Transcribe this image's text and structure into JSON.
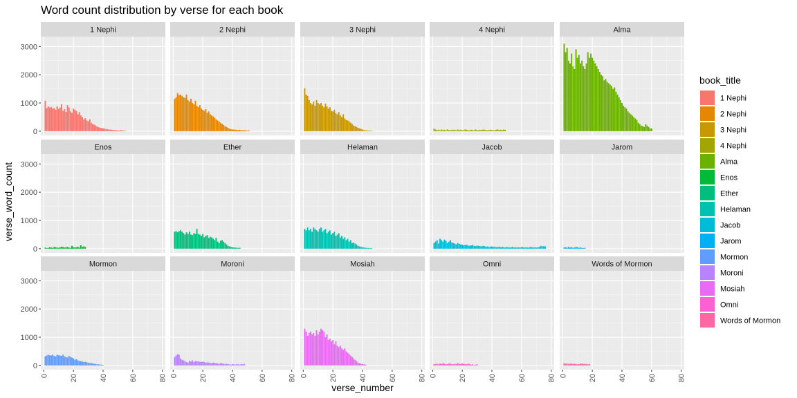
{
  "chart_data": {
    "type": "bar",
    "title": "Word count distribution by verse for each book",
    "xlabel": "verse_number",
    "ylabel": "verse_word_count",
    "xlim": [
      -2,
      82
    ],
    "ylim": [
      -150,
      3350
    ],
    "x_ticks": [
      0,
      20,
      40,
      60,
      80
    ],
    "y_ticks": [
      0,
      1000,
      2000,
      3000
    ],
    "grid": true,
    "facet_layout": {
      "rows": 3,
      "cols": 5
    },
    "legend": {
      "title": "book_title",
      "placement": "right"
    },
    "series": [
      {
        "name": "1 Nephi",
        "color": "#F8766D",
        "values": [
          1080,
          820,
          880,
          840,
          860,
          800,
          820,
          760,
          880,
          790,
          840,
          960,
          720,
          780,
          680,
          920,
          840,
          700,
          650,
          800,
          760,
          720,
          600,
          680,
          560,
          500,
          420,
          460,
          380,
          350,
          420,
          300,
          250,
          230,
          200,
          160,
          140,
          120,
          110,
          100,
          90,
          80,
          70,
          60,
          55,
          50,
          40,
          40,
          30,
          30,
          25,
          40,
          30,
          20,
          20
        ]
      },
      {
        "name": "2 Nephi",
        "color": "#E58700",
        "values": [
          1150,
          1200,
          1350,
          1280,
          1300,
          1250,
          1200,
          1180,
          1300,
          1100,
          1050,
          1150,
          1000,
          950,
          1080,
          900,
          850,
          920,
          800,
          760,
          720,
          780,
          650,
          700,
          600,
          560,
          520,
          480,
          420,
          380,
          340,
          300,
          260,
          220,
          180,
          150,
          120,
          90,
          70,
          60,
          60,
          50,
          50,
          40,
          50,
          40,
          30,
          40,
          30,
          20,
          30
        ]
      },
      {
        "name": "3 Nephi",
        "color": "#C99800",
        "values": [
          1520,
          1300,
          1250,
          1100,
          1000,
          950,
          1050,
          900,
          1100,
          1000,
          950,
          1000,
          900,
          850,
          980,
          880,
          800,
          850,
          720,
          700,
          760,
          640,
          600,
          680,
          560,
          500,
          600,
          450,
          400,
          380,
          350,
          300,
          250,
          200,
          180,
          150,
          120,
          100,
          80,
          60,
          40,
          30,
          30,
          20,
          20,
          20
        ]
      },
      {
        "name": "4 Nephi",
        "color": "#A3A500",
        "values": [
          90,
          60,
          40,
          50,
          30,
          60,
          40,
          50,
          30,
          60,
          40,
          30,
          50,
          40,
          50,
          30,
          60,
          40,
          50,
          30,
          40,
          60,
          50,
          40,
          30,
          50,
          40,
          30,
          60,
          40,
          30,
          50,
          40,
          60,
          50,
          40,
          30,
          40,
          50,
          40,
          30,
          40,
          50,
          60,
          40,
          50,
          40,
          60,
          50
        ]
      },
      {
        "name": "Alma",
        "color": "#6BB100",
        "values": [
          3100,
          2800,
          2950,
          2500,
          2400,
          2750,
          2300,
          2200,
          2900,
          2600,
          2700,
          2400,
          2500,
          2300,
          2200,
          2400,
          2800,
          2600,
          2750,
          2600,
          2500,
          2400,
          2300,
          2200,
          2100,
          2000,
          1950,
          1800,
          1850,
          1750,
          1700,
          1650,
          1600,
          1500,
          1550,
          1400,
          1300,
          1200,
          1100,
          1000,
          900,
          850,
          800,
          700,
          650,
          600,
          550,
          500,
          450,
          400,
          300,
          250,
          200,
          180,
          150,
          250,
          200,
          150,
          100,
          100
        ]
      },
      {
        "name": "Enos",
        "color": "#00BA38",
        "values": [
          40,
          20,
          30,
          50,
          40,
          30,
          60,
          50,
          40,
          30,
          50,
          70,
          60,
          40,
          50,
          60,
          40,
          30,
          100,
          50,
          40,
          50,
          70,
          40,
          120,
          60,
          80,
          60
        ]
      },
      {
        "name": "Ether",
        "color": "#00BF7D",
        "values": [
          600,
          620,
          580,
          620,
          650,
          600,
          550,
          500,
          580,
          520,
          600,
          500,
          480,
          550,
          520,
          700,
          520,
          500,
          450,
          520,
          400,
          450,
          480,
          380,
          420,
          400,
          350,
          300,
          380,
          250,
          200,
          280,
          300,
          250,
          200,
          150,
          100,
          80,
          60,
          50,
          40,
          40,
          30,
          30,
          30
        ]
      },
      {
        "name": "Helaman",
        "color": "#00C0AF",
        "values": [
          700,
          650,
          750,
          650,
          700,
          600,
          750,
          700,
          650,
          600,
          700,
          750,
          600,
          650,
          700,
          550,
          600,
          650,
          500,
          550,
          600,
          450,
          500,
          550,
          400,
          450,
          350,
          400,
          300,
          350,
          250,
          300,
          200,
          220,
          180,
          150,
          100,
          80,
          60,
          50,
          40,
          30,
          30,
          20,
          20,
          20
        ]
      },
      {
        "name": "Jacob",
        "color": "#00BCD8",
        "values": [
          200,
          250,
          300,
          180,
          350,
          300,
          250,
          320,
          280,
          200,
          250,
          300,
          220,
          200,
          180,
          150,
          200,
          170,
          150,
          140,
          120,
          130,
          140,
          110,
          100,
          120,
          130,
          100,
          90,
          110,
          100,
          90,
          80,
          100,
          90,
          70,
          80,
          60,
          70,
          80,
          60,
          70,
          50,
          60,
          70,
          50,
          60,
          50,
          40,
          60,
          50,
          40,
          50,
          60,
          40,
          50,
          40,
          50,
          40,
          60,
          50,
          40,
          50,
          40,
          40,
          60,
          50,
          40,
          50,
          40,
          50,
          60,
          100,
          80,
          90,
          80
        ]
      },
      {
        "name": "Jarom",
        "color": "#00B0F6",
        "values": [
          40,
          50,
          30,
          60,
          40,
          50,
          30,
          40,
          60,
          50,
          30,
          40,
          30,
          20,
          30
        ]
      },
      {
        "name": "Mormon",
        "color": "#619CFF",
        "values": [
          320,
          350,
          380,
          360,
          350,
          380,
          340,
          320,
          380,
          360,
          350,
          340,
          380,
          320,
          300,
          280,
          340,
          300,
          280,
          250,
          200,
          220,
          180,
          160,
          150,
          140,
          120,
          130,
          110,
          100,
          80,
          90,
          70,
          60,
          50,
          40,
          40,
          30,
          30,
          20
        ]
      },
      {
        "name": "Moroni",
        "color": "#B983FF",
        "values": [
          300,
          350,
          400,
          380,
          250,
          200,
          180,
          150,
          120,
          100,
          160,
          140,
          180,
          120,
          160,
          150,
          140,
          130,
          120,
          140,
          120,
          100,
          110,
          100,
          90,
          80,
          100,
          90,
          80,
          70,
          60,
          80,
          70,
          60,
          50,
          60,
          50,
          40,
          30,
          50,
          40,
          30,
          50,
          40,
          30,
          50,
          40,
          50
        ]
      },
      {
        "name": "Mosiah",
        "color": "#E76BF3",
        "values": [
          1300,
          1200,
          1050,
          1150,
          1200,
          1100,
          1150,
          1050,
          1250,
          1100,
          1200,
          1300,
          1250,
          1200,
          1000,
          1100,
          900,
          950,
          850,
          900,
          750,
          850,
          700,
          650,
          700,
          600,
          550,
          600,
          500,
          450,
          400,
          350,
          300,
          250,
          200,
          150,
          100,
          80,
          60,
          50,
          40,
          30
        ]
      },
      {
        "name": "Omni",
        "color": "#FD61D1",
        "values": [
          40,
          50,
          60,
          40,
          70,
          50,
          80,
          60,
          40,
          50,
          70,
          60,
          50,
          40,
          60,
          50,
          80,
          60,
          50,
          70,
          60,
          50,
          40,
          60,
          50,
          30,
          40,
          20,
          30,
          40
        ]
      },
      {
        "name": "Words of Mormon",
        "color": "#FF67A4",
        "values": [
          80,
          60,
          70,
          50,
          60,
          70,
          50,
          60,
          50,
          40,
          50,
          60,
          70,
          50,
          60,
          50,
          40,
          50
        ]
      }
    ]
  }
}
